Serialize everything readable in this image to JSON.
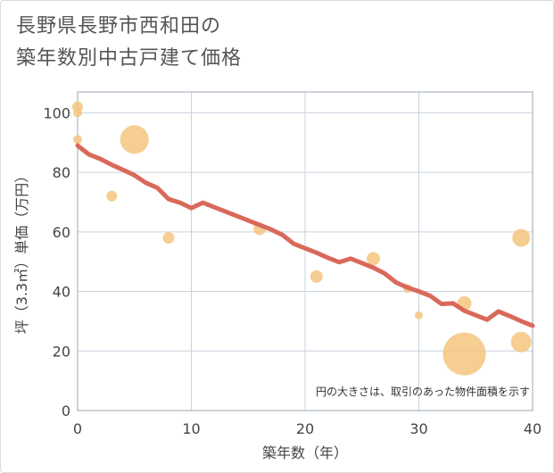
{
  "title_line1": "長野県長野市西和田の",
  "title_line2": "築年数別中古戸建て価格",
  "chart_data": {
    "type": "scatter",
    "xlabel": "築年数（年）",
    "ylabel": "坪（3.3㎡）単価（万円）",
    "xlim": [
      0,
      40
    ],
    "ylim": [
      0,
      107
    ],
    "xticks": [
      0,
      10,
      20,
      30,
      40
    ],
    "yticks": [
      0,
      20,
      40,
      60,
      80,
      100
    ],
    "grid": true,
    "note": "円の大きさは、取引のあった物件面積を示す",
    "colors": {
      "bubble": "#f5c57f",
      "trend": "#d9695a",
      "grid": "#c8d3de",
      "plot_border": "#9aa7b4"
    },
    "scatter": [
      {
        "x": 0,
        "y": 102,
        "size": 6
      },
      {
        "x": 0,
        "y": 100,
        "size": 5
      },
      {
        "x": 0,
        "y": 91,
        "size": 5
      },
      {
        "x": 3,
        "y": 72,
        "size": 6
      },
      {
        "x": 5,
        "y": 91,
        "size": 16
      },
      {
        "x": 8,
        "y": 58,
        "size": 6.5
      },
      {
        "x": 16,
        "y": 61,
        "size": 7
      },
      {
        "x": 21,
        "y": 45,
        "size": 7
      },
      {
        "x": 26,
        "y": 51,
        "size": 7.5
      },
      {
        "x": 29,
        "y": 41,
        "size": 5
      },
      {
        "x": 30,
        "y": 32,
        "size": 4.5
      },
      {
        "x": 34,
        "y": 36,
        "size": 8
      },
      {
        "x": 34,
        "y": 19,
        "size": 24
      },
      {
        "x": 39,
        "y": 58,
        "size": 10
      },
      {
        "x": 39,
        "y": 23,
        "size": 11.5
      }
    ],
    "trend": {
      "x": [
        0,
        1,
        2,
        3,
        4,
        5,
        6,
        7,
        8,
        9,
        10,
        11,
        12,
        13,
        14,
        15,
        16,
        17,
        18,
        19,
        20,
        21,
        22,
        23,
        24,
        25,
        26,
        27,
        28,
        29,
        30,
        31,
        32,
        33,
        34,
        35,
        36,
        37,
        38,
        39,
        40
      ],
      "y": [
        89,
        86,
        84.5,
        82.5,
        80.8,
        79,
        76.5,
        74.8,
        71,
        69.8,
        68,
        69.8,
        68.3,
        66.8,
        65.3,
        63.8,
        62.3,
        60.8,
        59,
        56,
        54.5,
        53,
        51.3,
        49.8,
        51,
        49.5,
        48,
        46,
        43,
        41.3,
        40,
        38.5,
        35.8,
        36,
        33.5,
        32,
        30.5,
        33.3,
        31.7,
        30,
        28.5
      ]
    }
  }
}
